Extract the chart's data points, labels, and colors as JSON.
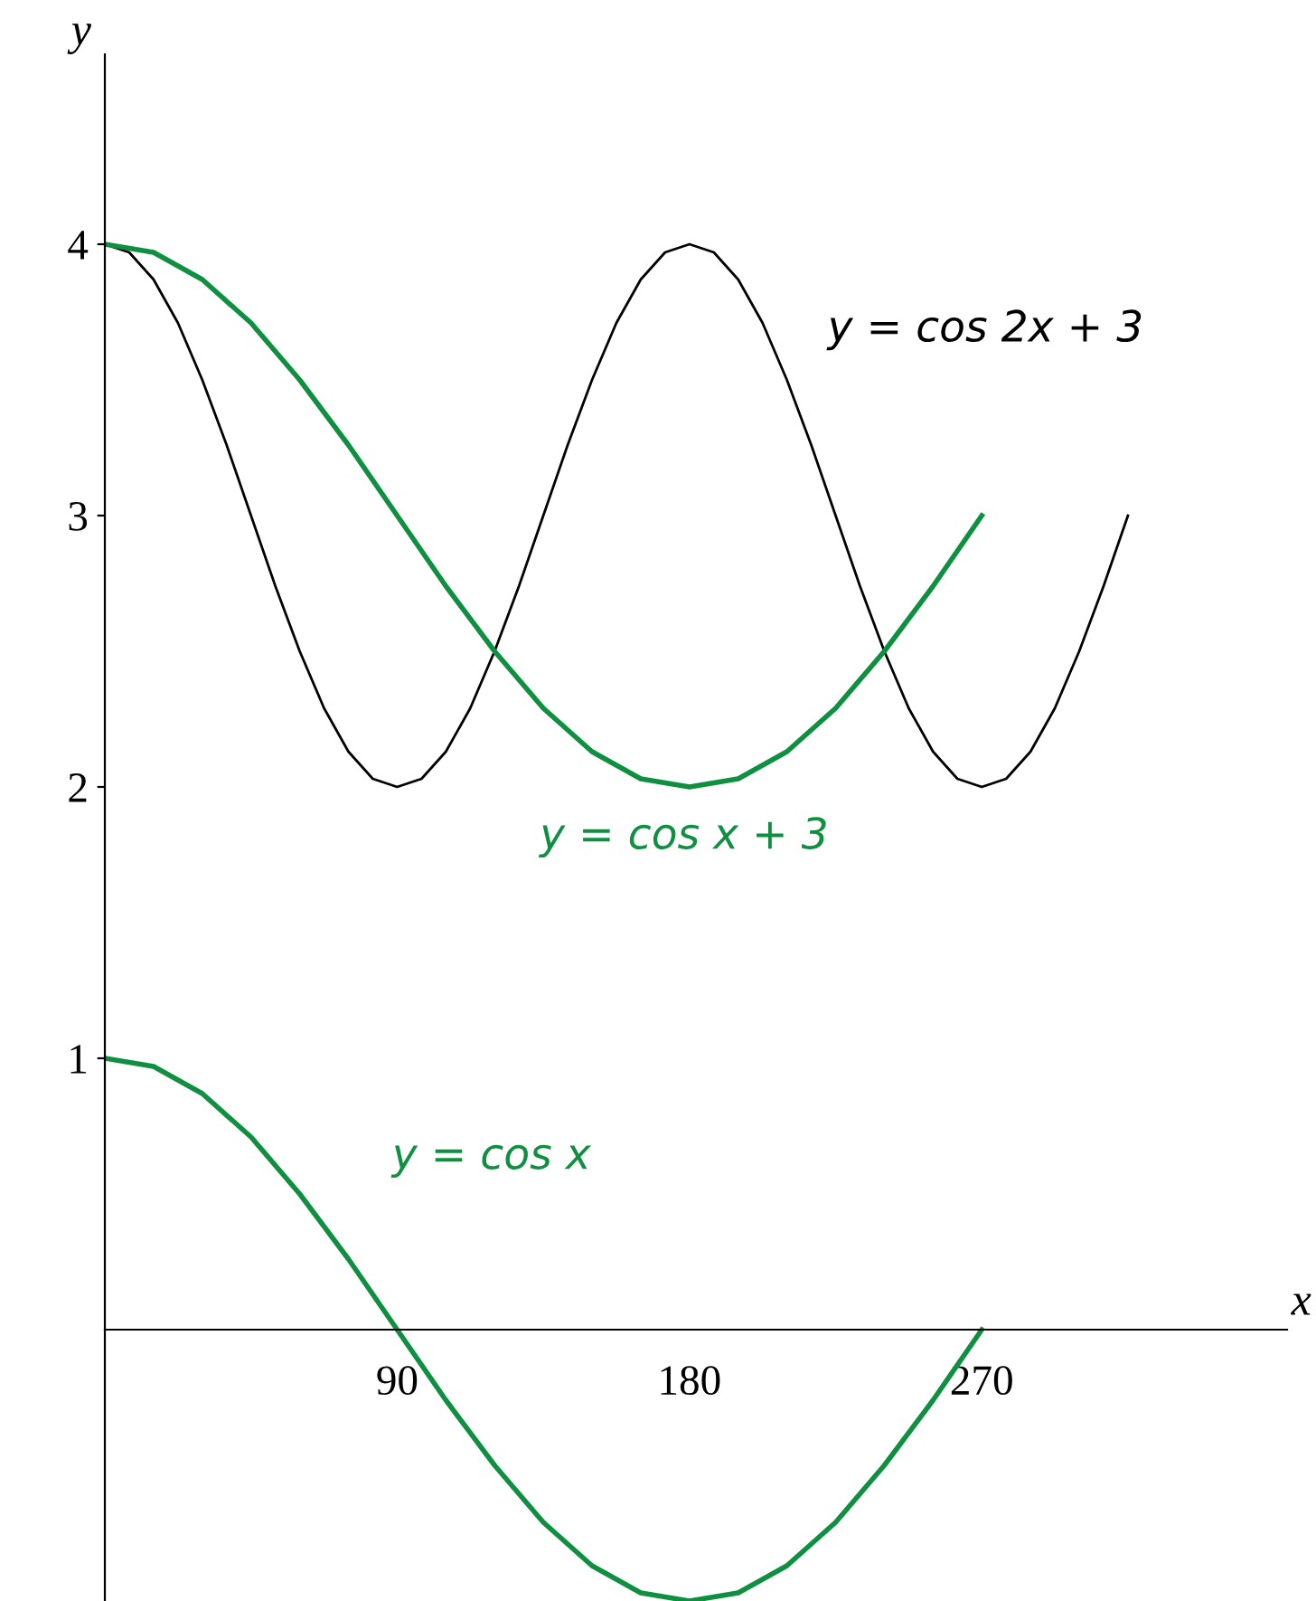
{
  "chart_data": {
    "type": "line",
    "xlabel": "x",
    "ylabel": "y",
    "xlim": [
      0,
      364
    ],
    "ylim": [
      -1,
      4.7
    ],
    "xticks": [
      90,
      180,
      270
    ],
    "yticks": [
      1,
      2,
      3,
      4
    ],
    "grid": false,
    "legend": false,
    "series": [
      {
        "color": "#000000",
        "x": [
          0,
          7.5,
          15,
          22.5,
          30,
          37.5,
          45,
          52.5,
          60,
          67.5,
          75,
          82.5,
          90,
          97.5,
          105,
          112.5,
          120,
          127.5,
          135,
          142.5,
          150,
          157.5,
          165,
          172.5,
          180,
          187.5,
          195,
          202.5,
          210,
          217.5,
          225,
          232.5,
          240,
          247.5,
          255,
          262.5,
          270,
          277.5,
          285,
          292.5,
          300,
          307.5,
          315
        ],
        "values": [
          4,
          3.97,
          3.87,
          3.71,
          3.5,
          3.26,
          3,
          2.74,
          2.5,
          2.29,
          2.13,
          2.03,
          2,
          2.03,
          2.13,
          2.29,
          2.5,
          2.74,
          3,
          3.26,
          3.5,
          3.71,
          3.87,
          3.97,
          4,
          3.97,
          3.87,
          3.71,
          3.5,
          3.26,
          3,
          2.74,
          2.5,
          2.29,
          2.13,
          2.03,
          2,
          2.03,
          2.13,
          2.29,
          2.5,
          2.74,
          3
        ]
      },
      {
        "color": "#0f9040",
        "x": [
          0,
          15,
          30,
          45,
          60,
          75,
          90,
          105,
          120,
          135,
          150,
          165,
          180,
          195,
          210,
          225,
          240,
          255,
          270
        ],
        "values": [
          4,
          3.97,
          3.87,
          3.71,
          3.5,
          3.26,
          3,
          2.74,
          2.5,
          2.29,
          2.13,
          2.03,
          2,
          2.03,
          2.13,
          2.29,
          2.5,
          2.74,
          3
        ]
      },
      {
        "color": "#0f9040",
        "x": [
          0,
          15,
          30,
          45,
          60,
          75,
          90,
          105,
          120,
          135,
          150,
          165,
          180,
          195,
          210,
          225,
          240,
          255,
          270
        ],
        "values": [
          1,
          0.97,
          0.87,
          0.71,
          0.5,
          0.26,
          0,
          -0.26,
          -0.5,
          -0.71,
          -0.87,
          -0.97,
          -1,
          -0.97,
          -0.87,
          -0.71,
          -0.5,
          -0.26,
          0
        ]
      }
    ],
    "annotations": [
      "y = cos 2x + 3",
      "y = cos x + 3",
      "y = cos x"
    ]
  }
}
